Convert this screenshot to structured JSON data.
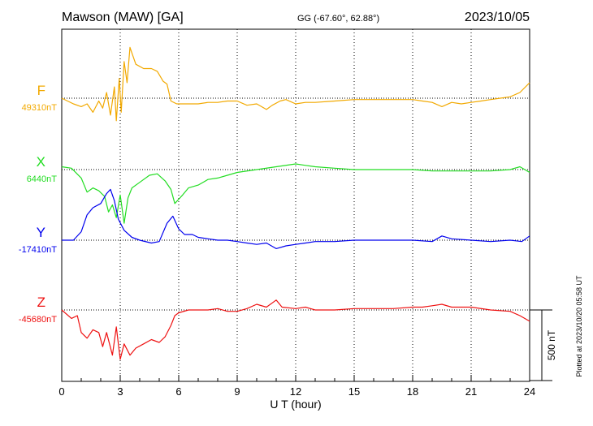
{
  "header": {
    "station": "Mawson (MAW)  [GA]",
    "coords": "GG (-67.60°,  62.88°)",
    "date": "2023/10/05"
  },
  "footer": {
    "plotted_note": "Plotted at 2023/10/20 05:58 UT"
  },
  "chart_data": {
    "type": "line",
    "title": "Mawson (MAW)  [GA]",
    "xlabel": "U T (hour)",
    "ylabel": "",
    "xlim": [
      0,
      24
    ],
    "xticks": [
      0,
      3,
      6,
      9,
      12,
      15,
      18,
      21,
      24
    ],
    "grid": "dotted, vertical every 3 hours plus baseline per component",
    "scale_bar_label": "500 nT",
    "scale_bar_nT": 500,
    "series": [
      {
        "name": "F",
        "baseline_label": "49310nT",
        "color": "#f2a900",
        "points": [
          [
            0,
            0
          ],
          [
            0.3,
            -20
          ],
          [
            0.6,
            -40
          ],
          [
            1.0,
            -60
          ],
          [
            1.3,
            -40
          ],
          [
            1.6,
            -100
          ],
          [
            1.9,
            -20
          ],
          [
            2.1,
            -70
          ],
          [
            2.3,
            40
          ],
          [
            2.5,
            -120
          ],
          [
            2.7,
            80
          ],
          [
            2.8,
            -160
          ],
          [
            2.95,
            140
          ],
          [
            3.05,
            -100
          ],
          [
            3.2,
            260
          ],
          [
            3.35,
            110
          ],
          [
            3.5,
            360
          ],
          [
            3.8,
            240
          ],
          [
            4.2,
            210
          ],
          [
            4.6,
            210
          ],
          [
            4.9,
            190
          ],
          [
            5.2,
            120
          ],
          [
            5.4,
            100
          ],
          [
            5.6,
            -20
          ],
          [
            5.9,
            -40
          ],
          [
            6.3,
            -40
          ],
          [
            7.0,
            -40
          ],
          [
            7.5,
            -30
          ],
          [
            8.0,
            -30
          ],
          [
            8.5,
            -20
          ],
          [
            9.0,
            -20
          ],
          [
            9.5,
            -50
          ],
          [
            10.0,
            -40
          ],
          [
            10.5,
            -80
          ],
          [
            10.8,
            -50
          ],
          [
            11.2,
            -20
          ],
          [
            11.5,
            -10
          ],
          [
            12.0,
            -40
          ],
          [
            12.5,
            -30
          ],
          [
            13.0,
            -30
          ],
          [
            14.0,
            -20
          ],
          [
            15.0,
            -10
          ],
          [
            16.0,
            -10
          ],
          [
            17.0,
            -10
          ],
          [
            18.0,
            -10
          ],
          [
            18.5,
            -20
          ],
          [
            19.0,
            -30
          ],
          [
            19.5,
            -60
          ],
          [
            20.0,
            -30
          ],
          [
            20.5,
            -40
          ],
          [
            21.0,
            -30
          ],
          [
            21.5,
            -20
          ],
          [
            22.0,
            -10
          ],
          [
            22.5,
            0
          ],
          [
            23.0,
            10
          ],
          [
            23.5,
            40
          ],
          [
            24.0,
            110
          ]
        ]
      },
      {
        "name": "X",
        "baseline_label": "6440nT",
        "color": "#22dd22",
        "points": [
          [
            0,
            20
          ],
          [
            0.5,
            10
          ],
          [
            1.0,
            -60
          ],
          [
            1.3,
            -160
          ],
          [
            1.6,
            -130
          ],
          [
            1.9,
            -150
          ],
          [
            2.2,
            -190
          ],
          [
            2.4,
            -300
          ],
          [
            2.6,
            -250
          ],
          [
            2.8,
            -340
          ],
          [
            3.0,
            -180
          ],
          [
            3.2,
            -380
          ],
          [
            3.4,
            -200
          ],
          [
            3.6,
            -130
          ],
          [
            4.0,
            -90
          ],
          [
            4.5,
            -40
          ],
          [
            4.9,
            -30
          ],
          [
            5.3,
            -80
          ],
          [
            5.6,
            -140
          ],
          [
            5.8,
            -240
          ],
          [
            6.0,
            -210
          ],
          [
            6.2,
            -180
          ],
          [
            6.5,
            -130
          ],
          [
            7.0,
            -110
          ],
          [
            7.5,
            -70
          ],
          [
            8.0,
            -60
          ],
          [
            8.5,
            -40
          ],
          [
            9.0,
            -20
          ],
          [
            10.0,
            0
          ],
          [
            11.0,
            20
          ],
          [
            12.0,
            40
          ],
          [
            12.5,
            30
          ],
          [
            13.0,
            20
          ],
          [
            14.0,
            10
          ],
          [
            15.0,
            0
          ],
          [
            16.0,
            0
          ],
          [
            17.0,
            0
          ],
          [
            18.0,
            0
          ],
          [
            19.0,
            -10
          ],
          [
            20.0,
            -10
          ],
          [
            21.0,
            -10
          ],
          [
            22.0,
            -10
          ],
          [
            23.0,
            0
          ],
          [
            23.5,
            20
          ],
          [
            24.0,
            -20
          ]
        ]
      },
      {
        "name": "Y",
        "baseline_label": "-17410nT",
        "color": "#0000ee",
        "points": [
          [
            0,
            0
          ],
          [
            0.6,
            0
          ],
          [
            1.0,
            60
          ],
          [
            1.3,
            180
          ],
          [
            1.6,
            230
          ],
          [
            2.0,
            260
          ],
          [
            2.3,
            330
          ],
          [
            2.5,
            360
          ],
          [
            2.7,
            280
          ],
          [
            2.9,
            150
          ],
          [
            3.2,
            70
          ],
          [
            3.6,
            20
          ],
          [
            4.0,
            0
          ],
          [
            4.6,
            -20
          ],
          [
            5.0,
            -10
          ],
          [
            5.4,
            120
          ],
          [
            5.7,
            170
          ],
          [
            6.0,
            80
          ],
          [
            6.3,
            40
          ],
          [
            6.7,
            40
          ],
          [
            7.0,
            20
          ],
          [
            7.5,
            10
          ],
          [
            8.0,
            0
          ],
          [
            8.5,
            0
          ],
          [
            9.0,
            -10
          ],
          [
            9.5,
            -20
          ],
          [
            10.0,
            -30
          ],
          [
            10.5,
            -20
          ],
          [
            11.0,
            -60
          ],
          [
            11.5,
            -40
          ],
          [
            12.0,
            -30
          ],
          [
            12.5,
            -20
          ],
          [
            13.0,
            -10
          ],
          [
            14.0,
            -10
          ],
          [
            15.0,
            0
          ],
          [
            16.0,
            0
          ],
          [
            17.0,
            0
          ],
          [
            18.0,
            0
          ],
          [
            19.0,
            -10
          ],
          [
            19.5,
            30
          ],
          [
            20.0,
            10
          ],
          [
            21.0,
            0
          ],
          [
            22.0,
            -10
          ],
          [
            23.0,
            0
          ],
          [
            23.6,
            -10
          ],
          [
            24.0,
            30
          ]
        ]
      },
      {
        "name": "Z",
        "baseline_label": "-45680nT",
        "color": "#ee1111",
        "points": [
          [
            0,
            0
          ],
          [
            0.5,
            -60
          ],
          [
            0.8,
            -40
          ],
          [
            1.0,
            -160
          ],
          [
            1.3,
            -200
          ],
          [
            1.6,
            -140
          ],
          [
            1.9,
            -160
          ],
          [
            2.1,
            -260
          ],
          [
            2.3,
            -160
          ],
          [
            2.6,
            -320
          ],
          [
            2.8,
            -120
          ],
          [
            3.0,
            -350
          ],
          [
            3.2,
            -240
          ],
          [
            3.5,
            -320
          ],
          [
            3.8,
            -270
          ],
          [
            4.2,
            -240
          ],
          [
            4.6,
            -210
          ],
          [
            5.0,
            -230
          ],
          [
            5.3,
            -190
          ],
          [
            5.6,
            -110
          ],
          [
            5.8,
            -40
          ],
          [
            6.0,
            -20
          ],
          [
            6.5,
            0
          ],
          [
            7.0,
            0
          ],
          [
            7.5,
            0
          ],
          [
            8.0,
            10
          ],
          [
            8.5,
            -10
          ],
          [
            9.0,
            -10
          ],
          [
            9.5,
            10
          ],
          [
            10.0,
            40
          ],
          [
            10.5,
            20
          ],
          [
            11.0,
            70
          ],
          [
            11.3,
            20
          ],
          [
            12.0,
            10
          ],
          [
            12.5,
            20
          ],
          [
            13.0,
            0
          ],
          [
            14.0,
            0
          ],
          [
            15.0,
            10
          ],
          [
            16.0,
            10
          ],
          [
            17.0,
            10
          ],
          [
            18.0,
            20
          ],
          [
            18.5,
            20
          ],
          [
            19.0,
            30
          ],
          [
            19.5,
            40
          ],
          [
            20.0,
            20
          ],
          [
            21.0,
            20
          ],
          [
            22.0,
            0
          ],
          [
            23.0,
            -10
          ],
          [
            23.5,
            -40
          ],
          [
            24.0,
            -80
          ]
        ]
      }
    ]
  }
}
